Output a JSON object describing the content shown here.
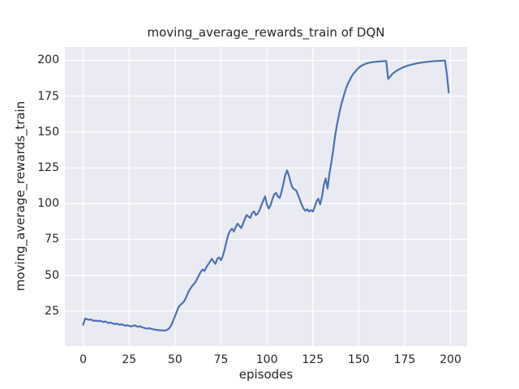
{
  "chart_data": {
    "type": "line",
    "title": "moving_average_rewards_train of DQN",
    "xlabel": "episodes",
    "ylabel": "moving_average_rewards_train",
    "x_start": 0,
    "x_step": 1,
    "values": [
      15.5,
      19.8,
      19.4,
      18.9,
      19.2,
      18.6,
      18.1,
      18.5,
      17.9,
      18.3,
      17.8,
      17.4,
      17.8,
      17.1,
      16.6,
      17.0,
      16.4,
      15.9,
      16.3,
      15.8,
      15.4,
      15.8,
      15.2,
      14.8,
      15.2,
      14.7,
      14.3,
      14.7,
      15.1,
      14.4,
      14.0,
      14.4,
      13.7,
      13.3,
      13.0,
      12.7,
      13.1,
      12.6,
      12.3,
      12.1,
      11.9,
      11.7,
      11.6,
      11.5,
      11.4,
      11.6,
      12.1,
      13.2,
      15.5,
      18.5,
      21.5,
      25.0,
      28.0,
      29.5,
      30.5,
      32.0,
      34.5,
      37.5,
      40.0,
      42.0,
      43.5,
      45.0,
      47.5,
      50.0,
      52.5,
      54.0,
      53.0,
      55.5,
      57.5,
      59.5,
      61.5,
      59.5,
      58.0,
      61.5,
      62.5,
      60.5,
      63.5,
      68.0,
      73.5,
      78.5,
      81.0,
      82.5,
      80.5,
      83.5,
      86.0,
      84.5,
      83.0,
      86.0,
      89.5,
      92.0,
      91.0,
      90.0,
      93.5,
      94.5,
      92.0,
      93.0,
      95.5,
      99.0,
      102.0,
      105.0,
      99.5,
      96.5,
      99.0,
      103.0,
      106.5,
      107.5,
      105.0,
      104.0,
      108.5,
      114.0,
      120.0,
      123.2,
      119.5,
      114.5,
      111.0,
      110.0,
      109.0,
      106.0,
      102.5,
      99.0,
      96.5,
      95.0,
      96.0,
      94.5,
      95.5,
      94.5,
      97.5,
      101.5,
      103.5,
      99.5,
      105.0,
      113.0,
      117.5,
      110.5,
      120.5,
      128.0,
      136.5,
      146.0,
      154.0,
      160.5,
      166.5,
      171.5,
      176.0,
      180.0,
      183.5,
      186.0,
      188.5,
      190.5,
      192.0,
      193.5,
      194.8,
      195.8,
      196.6,
      197.2,
      197.7,
      198.1,
      198.4,
      198.6,
      198.8,
      199.0,
      199.1,
      199.2,
      199.3,
      199.4,
      199.5,
      199.5,
      187.0,
      188.5,
      190.0,
      191.2,
      192.2,
      193.0,
      193.7,
      194.4,
      195.0,
      195.5,
      196.0,
      196.4,
      196.8,
      197.1,
      197.4,
      197.7,
      198.0,
      198.2,
      198.4,
      198.6,
      198.8,
      198.9,
      199.1,
      199.2,
      199.3,
      199.4,
      199.5,
      199.6,
      199.6,
      199.7,
      199.8,
      199.8,
      190.0,
      177.5
    ],
    "xticks": [
      0,
      25,
      50,
      75,
      100,
      125,
      150,
      175,
      200
    ],
    "yticks": [
      25,
      50,
      75,
      100,
      125,
      150,
      175,
      200
    ],
    "xlim": [
      -10,
      209
    ],
    "ylim": [
      0.6,
      209.3
    ],
    "grid": true,
    "legend": null,
    "colors": {
      "line": "#4c72b0",
      "axes_background": "#eaeaf2",
      "gridline": "#ffffff",
      "text": "#262626",
      "figure_background": "#ffffff"
    }
  }
}
